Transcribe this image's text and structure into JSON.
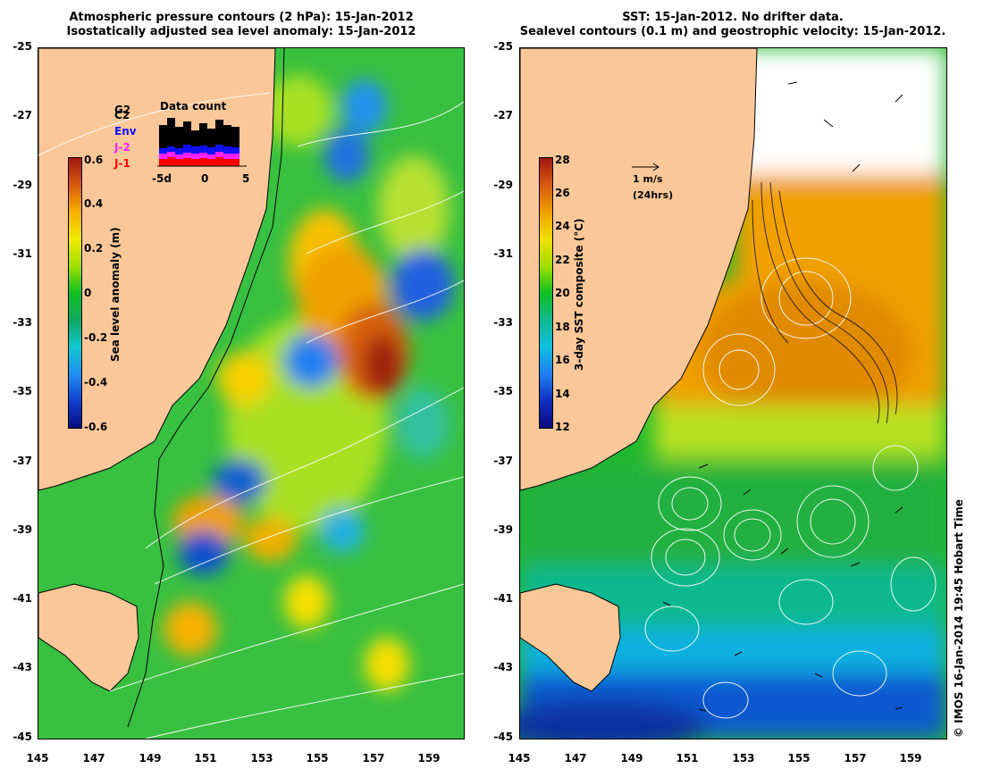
{
  "left_panel": {
    "title_line1": "Atmospheric pressure contours (2 hPa): 15-Jan-2012",
    "title_line2": "Isostatically adjusted sea level anomaly: 15-Jan-2012",
    "y_ticks": [
      "-25",
      "-27",
      "-29",
      "-31",
      "-33",
      "-35",
      "-37",
      "-39",
      "-41",
      "-43",
      "-45"
    ],
    "x_ticks": [
      "145",
      "147",
      "149",
      "151",
      "153",
      "155",
      "157",
      "159"
    ],
    "colorbar": {
      "label": "Sea level anomaly (m)",
      "ticks": [
        "0.6",
        "0.4",
        "0.2",
        "0",
        "-0.2",
        "-0.4",
        "-0.6"
      ],
      "colors": [
        "#a01810",
        "#d85a10",
        "#f8b000",
        "#f0e800",
        "#a0e000",
        "#10c020",
        "#10a860",
        "#10c8d0",
        "#2090f0",
        "#1040d0",
        "#0a0a80"
      ]
    },
    "data_count": {
      "title": "Data count",
      "axis_ticks": [
        "-5d",
        "0",
        "5"
      ],
      "satellites": [
        {
          "name": "G2",
          "color": "#000000"
        },
        {
          "name": "C2",
          "color": "#000000"
        },
        {
          "name": "Env",
          "color": "#1010ff"
        },
        {
          "name": "J-2",
          "color": "#ff20ff"
        },
        {
          "name": "J-1",
          "color": "#ff0000"
        }
      ]
    }
  },
  "right_panel": {
    "title_line1": "SST: 15-Jan-2012. No drifter data.",
    "title_line2": "Sealevel contours (0.1 m) and geostrophic velocity: 15-Jan-2012.",
    "y_ticks": [
      "-25",
      "-27",
      "-29",
      "-31",
      "-33",
      "-35",
      "-37",
      "-39",
      "-41",
      "-43",
      "-45"
    ],
    "x_ticks": [
      "145",
      "147",
      "149",
      "151",
      "153",
      "155",
      "157",
      "159"
    ],
    "colorbar": {
      "label": "3-day SST composite (°C)",
      "ticks": [
        "28",
        "26",
        "24",
        "22",
        "20",
        "18",
        "16",
        "14",
        "12"
      ],
      "colors": [
        "#a01810",
        "#d85a10",
        "#f0a000",
        "#f0e000",
        "#a0e000",
        "#10c020",
        "#10b890",
        "#10c0e0",
        "#2080f0",
        "#1030c0",
        "#0a0a80"
      ]
    },
    "velocity_scale": {
      "speed": "1 m/s",
      "period": "(24hrs)"
    }
  },
  "credit": "© IMOS 16-Jan-2014 19:45 Hobart Time",
  "colors": {
    "land": "#fac898",
    "ocean_base": "#40c040",
    "coast": "#000000"
  }
}
